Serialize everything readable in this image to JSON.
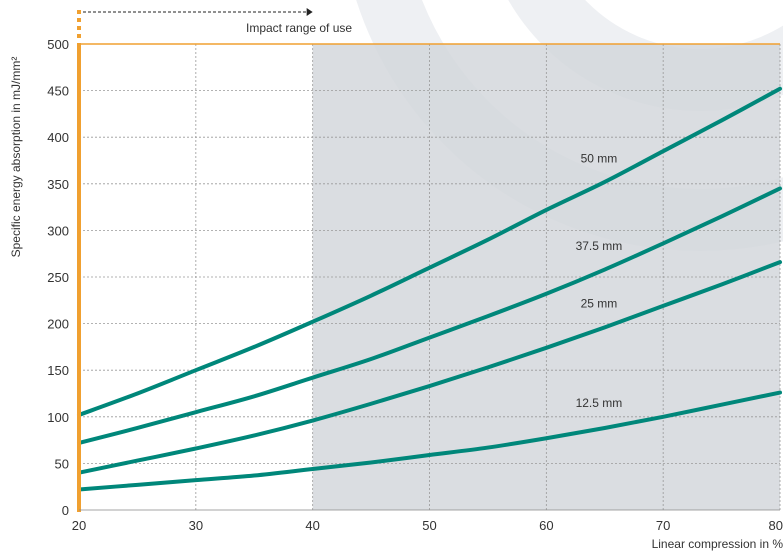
{
  "chart_data": {
    "type": "line",
    "title": "",
    "xlabel": "Linear compression in %",
    "ylabel": "Specific energy absorption in mJ/mm²",
    "xlim": [
      20,
      80
    ],
    "ylim": [
      0,
      500
    ],
    "x_ticks": [
      20,
      30,
      40,
      50,
      60,
      70,
      80
    ],
    "y_ticks": [
      0,
      50,
      100,
      150,
      200,
      250,
      300,
      350,
      400,
      450,
      500
    ],
    "grid": true,
    "x": [
      20,
      25,
      30,
      35,
      40,
      45,
      50,
      55,
      60,
      65,
      70,
      75,
      80
    ],
    "series": [
      {
        "name": "50 mm",
        "values": [
          102,
          125,
          150,
          175,
          202,
          230,
          260,
          290,
          322,
          352,
          385,
          418,
          452
        ]
      },
      {
        "name": "37.5 mm",
        "values": [
          72,
          88,
          105,
          122,
          142,
          162,
          185,
          208,
          232,
          258,
          286,
          315,
          345
        ]
      },
      {
        "name": "25 mm",
        "values": [
          40,
          53,
          66,
          80,
          96,
          114,
          133,
          153,
          174,
          196,
          219,
          242,
          266
        ]
      },
      {
        "name": "12.5 mm",
        "values": [
          22,
          27,
          32,
          37,
          44,
          51,
          59,
          67,
          77,
          88,
          100,
          113,
          126
        ]
      }
    ],
    "highlight_band": {
      "label": "Impact range of use",
      "x_start": 40,
      "x_end": 80
    },
    "colors": {
      "line": "#00877A",
      "band": "#D2D6DA",
      "frame": "#F0A030",
      "grid": "#999999",
      "watermark": "#EEF0F3"
    }
  }
}
